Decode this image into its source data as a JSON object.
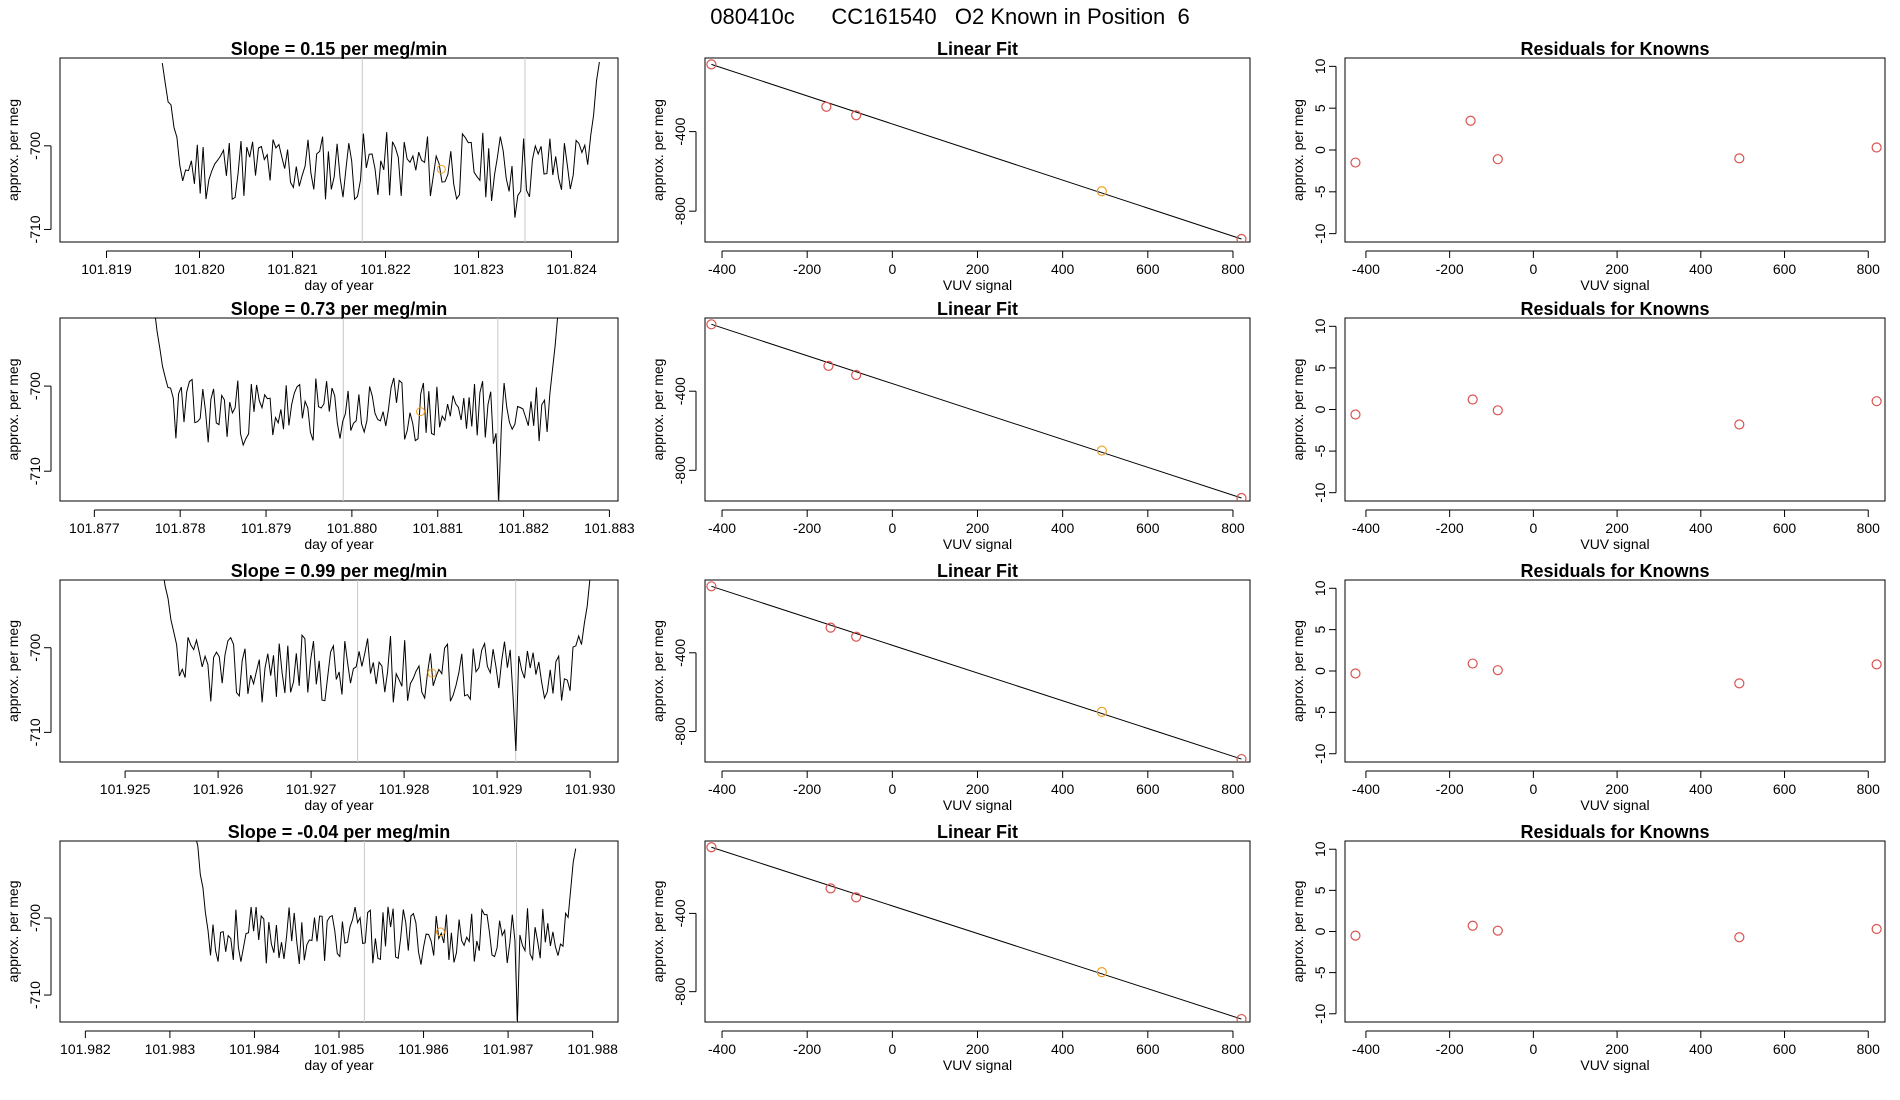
{
  "figure": {
    "title": "080410c      CC161540   O2 Known in Position  6"
  },
  "colors": {
    "line": "#000000",
    "axis": "#000000",
    "vline": "#c8c8c8",
    "point_red": "#d9534f",
    "point_orange": "#f0a020"
  },
  "chart_data": [
    {
      "type": "line",
      "panel": "timeseries",
      "title": "Slope =  0.15  per meg/min",
      "xlabel": "day of year",
      "ylabel": "approx. per meg",
      "xlim": [
        101.8185,
        101.8245
      ],
      "ylim": [
        -711.5,
        -689.5
      ],
      "xticks": [
        101.819,
        101.82,
        101.821,
        101.822,
        101.823,
        101.824
      ],
      "xtick_labels": [
        "101.819",
        "101.820",
        "101.821",
        "101.822",
        "101.823",
        "101.824"
      ],
      "yticks": [
        -700,
        -710
      ],
      "ytick_labels": [
        "-700",
        "-710"
      ],
      "series": [
        {
          "x_start": 101.8196,
          "x_end": 101.8243,
          "seed": 11,
          "y_mean": -702.5,
          "y_spread": 4.2,
          "dip_x": 101.8234,
          "dip_y": -708.6,
          "edge_left": -689.5,
          "edge_right": -689.5
        }
      ],
      "vlines": [
        101.82175,
        101.8235
      ],
      "highlight": {
        "x": 101.8226,
        "y": -702.8
      }
    },
    {
      "type": "scatter",
      "panel": "linear-fit",
      "title": "Linear Fit",
      "xlabel": "VUV signal",
      "ylabel": "approx. per meg",
      "xlim": [
        -440,
        840
      ],
      "ylim": [
        -955,
        -30
      ],
      "xticks": [
        -400,
        -200,
        0,
        200,
        400,
        600,
        800
      ],
      "xtick_labels": [
        "-400",
        "-200",
        "0",
        "200",
        "400",
        "600",
        "800"
      ],
      "yticks": [
        -400,
        -800
      ],
      "ytick_labels": [
        "-400",
        "-800"
      ],
      "points": [
        {
          "x": -425,
          "y": -62,
          "color": "red"
        },
        {
          "x": -155,
          "y": -275,
          "color": "red"
        },
        {
          "x": -85,
          "y": -318,
          "color": "red"
        },
        {
          "x": 492,
          "y": -700,
          "color": "orange"
        },
        {
          "x": 820,
          "y": -940,
          "color": "red"
        }
      ],
      "fit_line": {
        "x": [
          -425,
          820
        ],
        "y": [
          -62,
          -940
        ]
      }
    },
    {
      "type": "scatter",
      "panel": "residuals",
      "title": "Residuals for Knowns",
      "xlabel": "VUV signal",
      "ylabel": "approx. per meg",
      "xlim": [
        -450,
        840
      ],
      "ylim": [
        -11,
        11
      ],
      "xticks": [
        -400,
        -200,
        0,
        200,
        400,
        600,
        800
      ],
      "xtick_labels": [
        "-400",
        "-200",
        "0",
        "200",
        "400",
        "600",
        "800"
      ],
      "yticks": [
        10,
        5,
        0,
        -5,
        -10
      ],
      "ytick_labels": [
        "10",
        "5",
        "0",
        "-5",
        "-10"
      ],
      "points": [
        {
          "x": -425,
          "y": -1.5
        },
        {
          "x": -150,
          "y": 3.5
        },
        {
          "x": -85,
          "y": -1.1
        },
        {
          "x": 492,
          "y": -1.0
        },
        {
          "x": 820,
          "y": 0.3
        }
      ]
    },
    {
      "type": "line",
      "panel": "timeseries",
      "title": "Slope =  0.73  per meg/min",
      "xlabel": "day of year",
      "ylabel": "approx. per meg",
      "xlim": [
        101.8766,
        101.8831
      ],
      "ylim": [
        -713.5,
        -692
      ],
      "xticks": [
        101.877,
        101.878,
        101.879,
        101.88,
        101.881,
        101.882,
        101.883
      ],
      "xtick_labels": [
        "101.877",
        "101.878",
        "101.879",
        "101.880",
        "101.881",
        "101.882",
        "101.883"
      ],
      "yticks": [
        -700,
        -710
      ],
      "ytick_labels": [
        "-700",
        "-710"
      ],
      "series": [
        {
          "x_start": 101.8777,
          "x_end": 101.8824,
          "seed": 23,
          "y_mean": -703.0,
          "y_spread": 4.0,
          "dip_x": 101.8817,
          "dip_y": -713.5,
          "edge_left": -692,
          "edge_right": -692
        }
      ],
      "vlines": [
        101.8799,
        101.8817
      ],
      "highlight": {
        "x": 101.8808,
        "y": -703.0
      }
    },
    {
      "type": "scatter",
      "panel": "linear-fit",
      "title": "Linear Fit",
      "xlabel": "VUV signal",
      "ylabel": "approx. per meg",
      "xlim": [
        -440,
        840
      ],
      "ylim": [
        -955,
        -30
      ],
      "xticks": [
        -400,
        -200,
        0,
        200,
        400,
        600,
        800
      ],
      "xtick_labels": [
        "-400",
        "-200",
        "0",
        "200",
        "400",
        "600",
        "800"
      ],
      "yticks": [
        -400,
        -800
      ],
      "ytick_labels": [
        "-400",
        "-800"
      ],
      "points": [
        {
          "x": -425,
          "y": -62,
          "color": "red"
        },
        {
          "x": -150,
          "y": -272,
          "color": "red"
        },
        {
          "x": -85,
          "y": -318,
          "color": "red"
        },
        {
          "x": 492,
          "y": -700,
          "color": "orange"
        },
        {
          "x": 820,
          "y": -940,
          "color": "red"
        }
      ],
      "fit_line": {
        "x": [
          -425,
          820
        ],
        "y": [
          -62,
          -940
        ]
      }
    },
    {
      "type": "scatter",
      "panel": "residuals",
      "title": "Residuals for Knowns",
      "xlabel": "VUV signal",
      "ylabel": "approx. per meg",
      "xlim": [
        -450,
        840
      ],
      "ylim": [
        -11,
        11
      ],
      "xticks": [
        -400,
        -200,
        0,
        200,
        400,
        600,
        800
      ],
      "xtick_labels": [
        "-400",
        "-200",
        "0",
        "200",
        "400",
        "600",
        "800"
      ],
      "yticks": [
        10,
        5,
        0,
        -5,
        -10
      ],
      "ytick_labels": [
        "10",
        "5",
        "0",
        "-5",
        "-10"
      ],
      "points": [
        {
          "x": -425,
          "y": -0.6
        },
        {
          "x": -145,
          "y": 1.2
        },
        {
          "x": -85,
          "y": -0.1
        },
        {
          "x": 492,
          "y": -1.8
        },
        {
          "x": 820,
          "y": 1.0
        }
      ]
    },
    {
      "type": "line",
      "panel": "timeseries",
      "title": "Slope =  0.99  per meg/min",
      "xlabel": "day of year",
      "ylabel": "approx. per meg",
      "xlim": [
        101.9243,
        101.9303
      ],
      "ylim": [
        -713.5,
        -692
      ],
      "xticks": [
        101.925,
        101.926,
        101.927,
        101.928,
        101.929,
        101.93
      ],
      "xtick_labels": [
        "101.925",
        "101.926",
        "101.927",
        "101.928",
        "101.929",
        "101.930"
      ],
      "yticks": [
        -700,
        -710
      ],
      "ytick_labels": [
        "-700",
        "-710"
      ],
      "series": [
        {
          "x_start": 101.9254,
          "x_end": 101.93,
          "seed": 37,
          "y_mean": -702.5,
          "y_spread": 4.0,
          "dip_x": 101.9292,
          "dip_y": -712.2,
          "edge_left": -692,
          "edge_right": -692
        }
      ],
      "vlines": [
        101.9275,
        101.9292
      ],
      "highlight": {
        "x": 101.9283,
        "y": -703.0
      }
    },
    {
      "type": "scatter",
      "panel": "linear-fit",
      "title": "Linear Fit",
      "xlabel": "VUV signal",
      "ylabel": "approx. per meg",
      "xlim": [
        -440,
        840
      ],
      "ylim": [
        -955,
        -30
      ],
      "xticks": [
        -400,
        -200,
        0,
        200,
        400,
        600,
        800
      ],
      "xtick_labels": [
        "-400",
        "-200",
        "0",
        "200",
        "400",
        "600",
        "800"
      ],
      "yticks": [
        -400,
        -800
      ],
      "ytick_labels": [
        "-400",
        "-800"
      ],
      "points": [
        {
          "x": -425,
          "y": -62,
          "color": "red"
        },
        {
          "x": -145,
          "y": -272,
          "color": "red"
        },
        {
          "x": -85,
          "y": -318,
          "color": "red"
        },
        {
          "x": 492,
          "y": -700,
          "color": "orange"
        },
        {
          "x": 820,
          "y": -940,
          "color": "red"
        }
      ],
      "fit_line": {
        "x": [
          -425,
          820
        ],
        "y": [
          -62,
          -940
        ]
      }
    },
    {
      "type": "scatter",
      "panel": "residuals",
      "title": "Residuals for Knowns",
      "xlabel": "VUV signal",
      "ylabel": "approx. per meg",
      "xlim": [
        -450,
        840
      ],
      "ylim": [
        -11,
        11
      ],
      "xticks": [
        -400,
        -200,
        0,
        200,
        400,
        600,
        800
      ],
      "xtick_labels": [
        "-400",
        "-200",
        "0",
        "200",
        "400",
        "600",
        "800"
      ],
      "yticks": [
        10,
        5,
        0,
        -5,
        -10
      ],
      "ytick_labels": [
        "10",
        "5",
        "0",
        "-5",
        "-10"
      ],
      "points": [
        {
          "x": -425,
          "y": -0.3
        },
        {
          "x": -145,
          "y": 0.9
        },
        {
          "x": -85,
          "y": 0.1
        },
        {
          "x": 492,
          "y": -1.5
        },
        {
          "x": 820,
          "y": 0.8
        }
      ]
    },
    {
      "type": "line",
      "panel": "timeseries",
      "title": "Slope =  -0.04  per meg/min",
      "xlabel": "day of year",
      "ylabel": "approx. per meg",
      "xlim": [
        101.9817,
        101.9883
      ],
      "ylim": [
        -713.5,
        -690
      ],
      "xticks": [
        101.982,
        101.983,
        101.984,
        101.985,
        101.986,
        101.987,
        101.988
      ],
      "xtick_labels": [
        "101.982",
        "101.983",
        "101.984",
        "101.985",
        "101.986",
        "101.987",
        "101.988"
      ],
      "yticks": [
        -700,
        -710
      ],
      "ytick_labels": [
        "-700",
        "-710"
      ],
      "series": [
        {
          "x_start": 101.9833,
          "x_end": 101.9878,
          "seed": 53,
          "y_mean": -702.3,
          "y_spread": 3.8,
          "dip_x": 101.9871,
          "dip_y": -713.5,
          "edge_left": -690,
          "edge_right": -690
        }
      ],
      "vlines": [
        101.9853,
        101.9871
      ],
      "highlight": {
        "x": 101.9862,
        "y": -701.8
      }
    },
    {
      "type": "scatter",
      "panel": "linear-fit",
      "title": "Linear Fit",
      "xlabel": "VUV signal",
      "ylabel": "approx. per meg",
      "xlim": [
        -440,
        840
      ],
      "ylim": [
        -955,
        -30
      ],
      "xticks": [
        -400,
        -200,
        0,
        200,
        400,
        600,
        800
      ],
      "xtick_labels": [
        "-400",
        "-200",
        "0",
        "200",
        "400",
        "600",
        "800"
      ],
      "yticks": [
        -400,
        -800
      ],
      "ytick_labels": [
        "-400",
        "-800"
      ],
      "points": [
        {
          "x": -425,
          "y": -62,
          "color": "red"
        },
        {
          "x": -145,
          "y": -272,
          "color": "red"
        },
        {
          "x": -85,
          "y": -318,
          "color": "red"
        },
        {
          "x": 492,
          "y": -700,
          "color": "orange"
        },
        {
          "x": 820,
          "y": -940,
          "color": "red"
        }
      ],
      "fit_line": {
        "x": [
          -425,
          820
        ],
        "y": [
          -62,
          -940
        ]
      }
    },
    {
      "type": "scatter",
      "panel": "residuals",
      "title": "Residuals for Knowns",
      "xlabel": "VUV signal",
      "ylabel": "approx. per meg",
      "xlim": [
        -450,
        840
      ],
      "ylim": [
        -11,
        11
      ],
      "xticks": [
        -400,
        -200,
        0,
        200,
        400,
        600,
        800
      ],
      "xtick_labels": [
        "-400",
        "-200",
        "0",
        "200",
        "400",
        "600",
        "800"
      ],
      "yticks": [
        10,
        5,
        0,
        -5,
        -10
      ],
      "ytick_labels": [
        "10",
        "5",
        "0",
        "-5",
        "-10"
      ],
      "points": [
        {
          "x": -425,
          "y": -0.5
        },
        {
          "x": -145,
          "y": 0.7
        },
        {
          "x": -85,
          "y": 0.1
        },
        {
          "x": 492,
          "y": -0.7
        },
        {
          "x": 820,
          "y": 0.3
        }
      ]
    }
  ]
}
